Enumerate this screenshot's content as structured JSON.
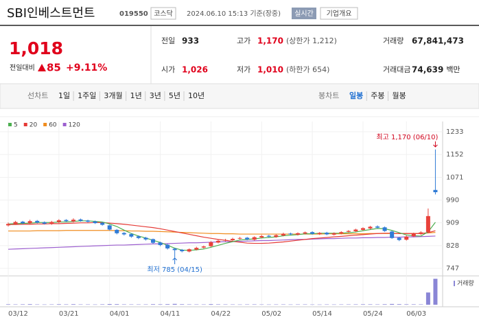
{
  "header": {
    "name": "SBI인베스트먼트",
    "code": "019550",
    "market": "코스닥",
    "datetime": "2024.06.10 15:13 기준(장중)",
    "realtime": "실시간",
    "company": "기업개요"
  },
  "quote": {
    "price": "1,018",
    "change_label": "전일대비",
    "change": "85",
    "change_pct": "+9.11%"
  },
  "info": [
    {
      "label": "전일",
      "value": "933",
      "color": "#222222"
    },
    {
      "label": "고가",
      "value": "1,170",
      "extra": "(상한가 1,212)",
      "color": "#e0001b"
    },
    {
      "label": "거래량",
      "value": "67,841,473",
      "color": "#222222"
    },
    {
      "label": "시가",
      "value": "1,026",
      "color": "#e0001b"
    },
    {
      "label": "저가",
      "value": "1,010",
      "extra": "(하한가 654)",
      "color": "#e0001b"
    },
    {
      "label": "거래대금",
      "value": "74,639",
      "extra": "백만",
      "color": "#222222"
    }
  ],
  "tabs": {
    "line_label": "선차트",
    "periods": [
      "1일",
      "1주일",
      "3개월",
      "1년",
      "3년",
      "5년",
      "10년"
    ],
    "candle_label": "봉차트",
    "candle_periods": [
      "일봉",
      "주봉",
      "월봉"
    ],
    "active": 0
  },
  "chart_data": {
    "type": "candlestick",
    "categories": [
      "03/12",
      null,
      null,
      null,
      null,
      null,
      null,
      "03/21",
      null,
      null,
      null,
      null,
      null,
      null,
      "04/01",
      null,
      null,
      null,
      null,
      null,
      null,
      "04/11",
      null,
      null,
      null,
      null,
      null,
      null,
      "04/22",
      null,
      null,
      null,
      null,
      null,
      null,
      "05/02",
      null,
      null,
      null,
      null,
      null,
      null,
      "05/14",
      null,
      null,
      null,
      null,
      null,
      null,
      "05/24",
      null,
      null,
      null,
      null,
      null,
      "06/03",
      null,
      null,
      null,
      null
    ],
    "open": [
      900,
      905,
      913,
      908,
      916,
      911,
      905,
      912,
      919,
      914,
      921,
      917,
      914,
      909,
      900,
      884,
      873,
      869,
      861,
      856,
      851,
      839,
      831,
      817,
      813,
      807,
      814,
      821,
      826,
      839,
      846,
      847,
      853,
      856,
      849,
      857,
      863,
      859,
      864,
      871,
      867,
      871,
      876,
      869,
      874,
      867,
      871,
      877,
      879,
      884,
      889,
      896,
      893,
      878,
      856,
      849,
      861,
      869,
      876,
      1026
    ],
    "high": [
      910,
      916,
      916,
      920,
      919,
      914,
      916,
      922,
      922,
      925,
      924,
      920,
      917,
      912,
      902,
      887,
      876,
      872,
      864,
      859,
      853,
      842,
      834,
      820,
      816,
      818,
      824,
      828,
      844,
      849,
      852,
      856,
      859,
      859,
      861,
      866,
      866,
      868,
      874,
      874,
      875,
      878,
      879,
      876,
      877,
      875,
      879,
      883,
      888,
      893,
      898,
      900,
      896,
      881,
      859,
      864,
      874,
      879,
      960,
      1170
    ],
    "low": [
      896,
      902,
      904,
      905,
      907,
      903,
      902,
      908,
      912,
      911,
      913,
      910,
      905,
      899,
      882,
      868,
      864,
      856,
      851,
      846,
      834,
      826,
      814,
      785,
      804,
      804,
      811,
      818,
      823,
      836,
      843,
      844,
      850,
      847,
      846,
      854,
      857,
      856,
      861,
      865,
      864,
      868,
      867,
      866,
      865,
      864,
      868,
      874,
      876,
      881,
      886,
      889,
      877,
      852,
      844,
      846,
      858,
      866,
      873,
      1010
    ],
    "close": [
      905,
      912,
      908,
      915,
      910,
      906,
      912,
      918,
      915,
      920,
      916,
      913,
      908,
      902,
      885,
      872,
      868,
      860,
      855,
      850,
      838,
      830,
      818,
      812,
      808,
      815,
      820,
      825,
      840,
      845,
      848,
      852,
      855,
      850,
      858,
      862,
      860,
      865,
      870,
      868,
      872,
      875,
      870,
      873,
      868,
      872,
      876,
      880,
      885,
      890,
      895,
      892,
      880,
      855,
      848,
      860,
      870,
      875,
      933,
      1018
    ],
    "up_color": "#e8413a",
    "down_color": "#2f7bd6",
    "ylim": [
      730,
      1250
    ],
    "yticks": [
      747,
      828,
      909,
      990,
      1071,
      1152,
      1233
    ],
    "moving_averages": [
      {
        "name": "5",
        "color": "#4caf50",
        "values": [
          905,
          906,
          907,
          908,
          910,
          910,
          910,
          912,
          912,
          914,
          916,
          916,
          914,
          912,
          905,
          896,
          883,
          871,
          862,
          855,
          847,
          839,
          829,
          819,
          812,
          811,
          813,
          816,
          822,
          829,
          836,
          842,
          848,
          850,
          852,
          855,
          857,
          859,
          863,
          865,
          867,
          870,
          870,
          872,
          872,
          872,
          872,
          874,
          876,
          881,
          885,
          889,
          888,
          882,
          874,
          866,
          863,
          862,
          877,
          911
        ]
      },
      {
        "name": "20",
        "color": "#e53935",
        "values": [
          903,
          903,
          904,
          904,
          905,
          905,
          906,
          906,
          907,
          908,
          909,
          909,
          910,
          910,
          908,
          906,
          904,
          901,
          898,
          895,
          892,
          888,
          883,
          878,
          873,
          868,
          863,
          858,
          854,
          850,
          847,
          843,
          840,
          837,
          836,
          836,
          837,
          839,
          841,
          844,
          847,
          850,
          853,
          855,
          857,
          859,
          861,
          863,
          865,
          867,
          869,
          871,
          872,
          872,
          871,
          871,
          871,
          871,
          874,
          881
        ]
      },
      {
        "name": "60",
        "color": "#f08c1e",
        "values": [
          880,
          880,
          880,
          880,
          881,
          881,
          881,
          881,
          882,
          882,
          882,
          882,
          882,
          882,
          882,
          881,
          881,
          880,
          880,
          879,
          879,
          878,
          877,
          876,
          875,
          874,
          873,
          872,
          871,
          871,
          870,
          870,
          869,
          869,
          869,
          869,
          869,
          869,
          869,
          869,
          869,
          869,
          869,
          869,
          870,
          870,
          870,
          870,
          870,
          870,
          871,
          871,
          871,
          871,
          871,
          871,
          871,
          871,
          873,
          875
        ]
      },
      {
        "name": "120",
        "color": "#9c5fcf",
        "values": [
          815,
          816,
          817,
          818,
          819,
          820,
          821,
          822,
          823,
          824,
          825,
          826,
          827,
          828,
          829,
          830,
          830,
          831,
          832,
          833,
          834,
          834,
          835,
          836,
          837,
          838,
          838,
          839,
          840,
          841,
          842,
          842,
          843,
          844,
          845,
          846,
          846,
          847,
          848,
          849,
          850,
          850,
          851,
          852,
          853,
          853,
          854,
          855,
          855,
          856,
          856,
          857,
          857,
          858,
          858,
          859,
          859,
          860,
          861,
          862
        ]
      }
    ],
    "annotations": {
      "high": "최고 1,170 (06/10)",
      "low": "최저 785 (04/15)"
    },
    "volume": {
      "label": "거래량",
      "color": "#8a86d6",
      "ylim": [
        0,
        70000000
      ],
      "values": [
        1200000,
        900000,
        1100000,
        1500000,
        800000,
        700000,
        900000,
        1300000,
        1000000,
        1400000,
        900000,
        800000,
        700000,
        1100000,
        1800000,
        1500000,
        1000000,
        900000,
        800000,
        900000,
        1400000,
        1200000,
        1500000,
        2200000,
        1300000,
        1000000,
        900000,
        800000,
        1600000,
        1100000,
        900000,
        800000,
        700000,
        900000,
        1000000,
        800000,
        700000,
        800000,
        900000,
        700000,
        800000,
        900000,
        700000,
        600000,
        800000,
        700000,
        800000,
        900000,
        1000000,
        1200000,
        1100000,
        900000,
        1300000,
        2000000,
        1500000,
        1200000,
        1100000,
        1000000,
        32000000,
        67841473
      ]
    }
  }
}
